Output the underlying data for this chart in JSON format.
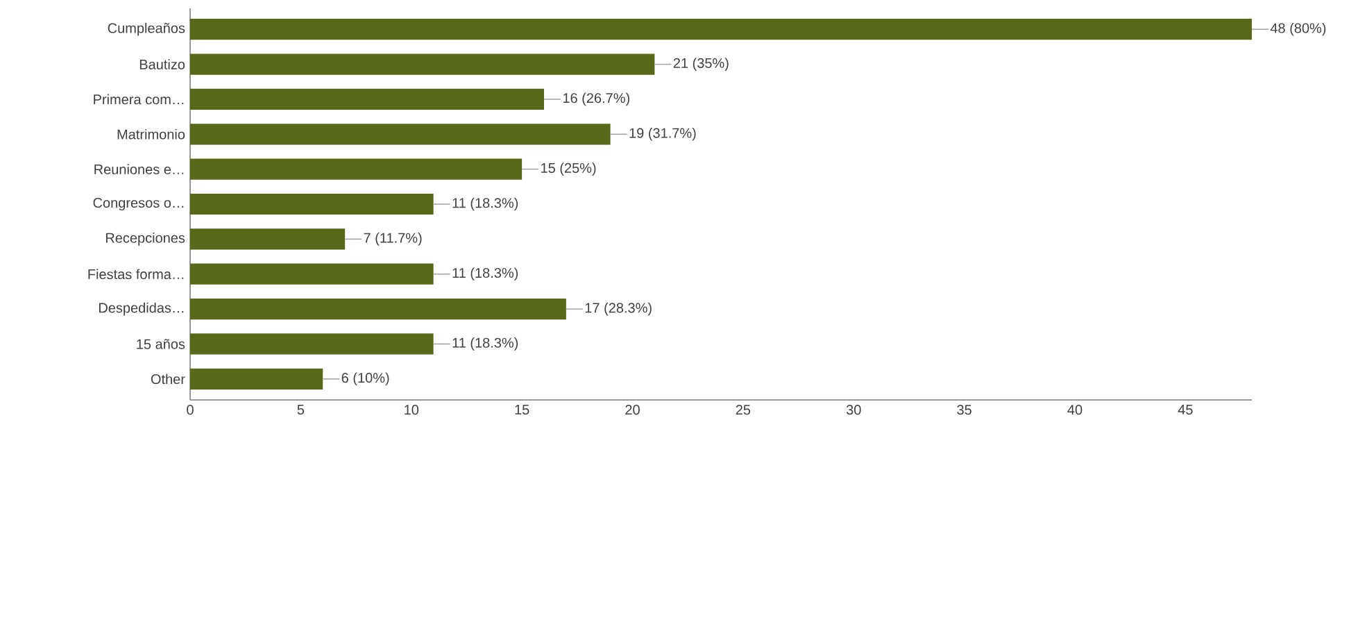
{
  "chart_data": {
    "type": "bar",
    "orientation": "horizontal",
    "categories": [
      "Cumpleaños",
      "Bautizo",
      "Primera com…",
      "Matrimonio",
      "Reuniones e…",
      "Congresos o…",
      "Recepciones",
      "Fiestas forma…",
      "Despedidas…",
      "15 años",
      "Other"
    ],
    "values": [
      48,
      21,
      16,
      19,
      15,
      11,
      7,
      11,
      17,
      11,
      6
    ],
    "value_labels": [
      "48 (80%)",
      "21 (35%)",
      "16 (26.7%)",
      "19 (31.7%)",
      "15 (25%)",
      "11 (18.3%)",
      "7 (11.7%)",
      "11 (18.3%)",
      "17 (28.3%)",
      "11 (18.3%)",
      "6 (10%)"
    ],
    "color": "#58691a",
    "xlim": [
      0,
      48
    ],
    "xticks": [
      0,
      5,
      10,
      15,
      20,
      25,
      30,
      35,
      40,
      45
    ],
    "grid": false
  }
}
